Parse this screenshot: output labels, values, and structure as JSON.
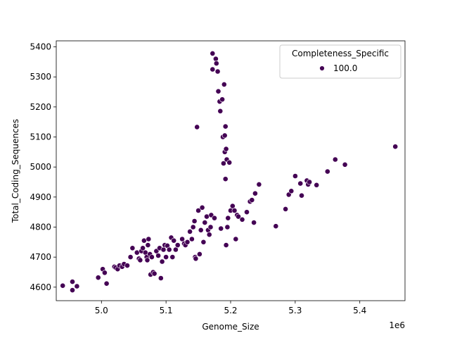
{
  "chart_data": {
    "type": "scatter",
    "xlabel": "Genome_Size",
    "ylabel": "Total_Coding_Sequences",
    "x_offset_label": "1e6",
    "xlim": [
      4930000,
      5470000
    ],
    "ylim": [
      4555,
      5420
    ],
    "x_ticks": [
      5000000,
      5100000,
      5200000,
      5300000,
      5400000
    ],
    "x_tick_labels": [
      "5.0",
      "5.1",
      "5.2",
      "5.3",
      "5.4"
    ],
    "y_ticks": [
      4600,
      4700,
      4800,
      4900,
      5000,
      5100,
      5200,
      5300,
      5400
    ],
    "y_tick_labels": [
      "4600",
      "4700",
      "4800",
      "4900",
      "5000",
      "5100",
      "5200",
      "5300",
      "5400"
    ],
    "grid": false,
    "legend": {
      "title": "Completeness_Specific",
      "position": "top-right"
    },
    "series": [
      {
        "name": "100.0",
        "color": "#440154",
        "points": [
          [
            4940000,
            4605
          ],
          [
            4955000,
            4618
          ],
          [
            4955000,
            4590
          ],
          [
            4962000,
            4603
          ],
          [
            4995000,
            4632
          ],
          [
            5002000,
            4660
          ],
          [
            5005000,
            4648
          ],
          [
            5008000,
            4612
          ],
          [
            5020000,
            4668
          ],
          [
            5022000,
            4665
          ],
          [
            5025000,
            4660
          ],
          [
            5028000,
            4672
          ],
          [
            5032000,
            4668
          ],
          [
            5035000,
            4677
          ],
          [
            5040000,
            4672
          ],
          [
            5045000,
            4700
          ],
          [
            5048000,
            4730
          ],
          [
            5055000,
            4715
          ],
          [
            5058000,
            4695
          ],
          [
            5060000,
            4690
          ],
          [
            5062000,
            4720
          ],
          [
            5064000,
            4730
          ],
          [
            5066000,
            4755
          ],
          [
            5068000,
            4715
          ],
          [
            5070000,
            4700
          ],
          [
            5071000,
            4690
          ],
          [
            5072000,
            4740
          ],
          [
            5073000,
            4760
          ],
          [
            5075000,
            4710
          ],
          [
            5076000,
            4642
          ],
          [
            5078000,
            4700
          ],
          [
            5080000,
            4650
          ],
          [
            5082000,
            4645
          ],
          [
            5085000,
            4720
          ],
          [
            5088000,
            4705
          ],
          [
            5090000,
            4730
          ],
          [
            5092000,
            4630
          ],
          [
            5094000,
            4685
          ],
          [
            5096000,
            4725
          ],
          [
            5098000,
            4740
          ],
          [
            5100000,
            4700
          ],
          [
            5102000,
            4738
          ],
          [
            5105000,
            4725
          ],
          [
            5108000,
            4765
          ],
          [
            5110000,
            4700
          ],
          [
            5112000,
            4755
          ],
          [
            5115000,
            4725
          ],
          [
            5118000,
            4740
          ],
          [
            5125000,
            4760
          ],
          [
            5128000,
            4745
          ],
          [
            5130000,
            4740
          ],
          [
            5133000,
            4750
          ],
          [
            5137000,
            4785
          ],
          [
            5140000,
            4760
          ],
          [
            5142000,
            4800
          ],
          [
            5144000,
            4820
          ],
          [
            5145000,
            4700
          ],
          [
            5146000,
            4695
          ],
          [
            5148000,
            5133
          ],
          [
            5150000,
            4855
          ],
          [
            5152000,
            4710
          ],
          [
            5154000,
            4790
          ],
          [
            5156000,
            4865
          ],
          [
            5158000,
            4750
          ],
          [
            5160000,
            4815
          ],
          [
            5163000,
            4835
          ],
          [
            5165000,
            4790
          ],
          [
            5167000,
            4775
          ],
          [
            5169000,
            4800
          ],
          [
            5170000,
            4840
          ],
          [
            5172000,
            5325
          ],
          [
            5172000,
            5378
          ],
          [
            5175000,
            4830
          ],
          [
            5177000,
            5360
          ],
          [
            5178000,
            5345
          ],
          [
            5180000,
            5318
          ],
          [
            5181000,
            5252
          ],
          [
            5183000,
            5218
          ],
          [
            5184000,
            5186
          ],
          [
            5185000,
            4795
          ],
          [
            5187000,
            5225
          ],
          [
            5188000,
            5100
          ],
          [
            5189000,
            5012
          ],
          [
            5190000,
            5275
          ],
          [
            5191000,
            5105
          ],
          [
            5191000,
            5050
          ],
          [
            5192000,
            5135
          ],
          [
            5192000,
            4960
          ],
          [
            5193000,
            5060
          ],
          [
            5193000,
            4740
          ],
          [
            5194000,
            5025
          ],
          [
            5195000,
            4800
          ],
          [
            5196000,
            4830
          ],
          [
            5198000,
            5015
          ],
          [
            5200000,
            4855
          ],
          [
            5203000,
            4870
          ],
          [
            5206000,
            4855
          ],
          [
            5208000,
            4760
          ],
          [
            5210000,
            4840
          ],
          [
            5212000,
            4835
          ],
          [
            5218000,
            4825
          ],
          [
            5225000,
            4850
          ],
          [
            5230000,
            4885
          ],
          [
            5233000,
            4890
          ],
          [
            5236000,
            4815
          ],
          [
            5238000,
            4912
          ],
          [
            5244000,
            4942
          ],
          [
            5270000,
            4803
          ],
          [
            5285000,
            4860
          ],
          [
            5290000,
            4908
          ],
          [
            5294000,
            4920
          ],
          [
            5300000,
            4970
          ],
          [
            5308000,
            4945
          ],
          [
            5310000,
            4905
          ],
          [
            5318000,
            4955
          ],
          [
            5320000,
            4942
          ],
          [
            5322000,
            4950
          ],
          [
            5333000,
            4940
          ],
          [
            5350000,
            4985
          ],
          [
            5362000,
            5025
          ],
          [
            5377000,
            5008
          ],
          [
            5455000,
            5068
          ]
        ]
      }
    ]
  }
}
